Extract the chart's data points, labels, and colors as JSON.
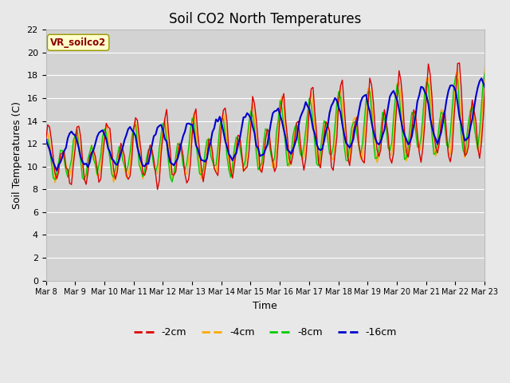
{
  "title": "Soil CO2 North Temperatures",
  "xlabel": "Time",
  "ylabel": "Soil Temperatures (C)",
  "annotation": "VR_soilco2",
  "ylim": [
    0,
    22
  ],
  "background_color": "#e8e8e8",
  "plot_bg_color": "#d3d3d3",
  "grid_color": "#ffffff",
  "colors": {
    "-2cm": "#dd0000",
    "-4cm": "#ffaa00",
    "-8cm": "#00cc00",
    "-16cm": "#0000cc"
  },
  "x_tick_labels": [
    "Mar 8",
    "Mar 9",
    "Mar 10",
    "Mar 11",
    "Mar 12",
    "Mar 13",
    "Mar 14",
    "Mar 15",
    "Mar 16",
    "Mar 17",
    "Mar 18",
    "Mar 19",
    "Mar 20",
    "Mar 21",
    "Mar 22",
    "Mar 23"
  ],
  "num_days": 16
}
